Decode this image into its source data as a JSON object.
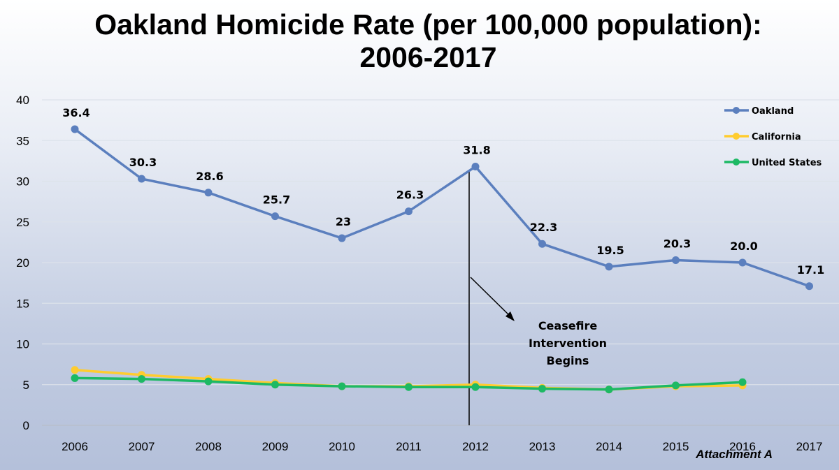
{
  "chart_data": {
    "type": "line",
    "title_lines": [
      "Oakland Homicide Rate (per 100,000 population):",
      "2006-2017"
    ],
    "categories": [
      "2006",
      "2007",
      "2008",
      "2009",
      "2010",
      "2011",
      "2012",
      "2013",
      "2014",
      "2015",
      "2016",
      "2017"
    ],
    "ylim": [
      0,
      40
    ],
    "yticks": [
      0,
      5,
      10,
      15,
      20,
      25,
      30,
      35,
      40
    ],
    "grid": true,
    "legend_position": "top-right",
    "series": [
      {
        "name": "Oakland",
        "color": "#5b7fbe",
        "values": [
          36.4,
          30.3,
          28.6,
          25.7,
          23.0,
          26.3,
          31.8,
          22.3,
          19.5,
          20.3,
          20.0,
          17.1
        ],
        "labels": [
          "36.4",
          "30.3",
          "28.6",
          "25.7",
          "23",
          "26.3",
          "31.8",
          "22.3",
          "19.5",
          "20.3",
          "20.0",
          "17.1"
        ]
      },
      {
        "name": "California",
        "color": "#ffcc2f",
        "values": [
          6.8,
          6.2,
          5.7,
          5.2,
          4.8,
          4.8,
          5.0,
          4.6,
          4.4,
          4.8,
          4.9,
          null
        ]
      },
      {
        "name": "United States",
        "color": "#1db964",
        "values": [
          5.8,
          5.7,
          5.4,
          5.0,
          4.8,
          4.7,
          4.7,
          4.5,
          4.4,
          4.9,
          5.3,
          null
        ]
      }
    ],
    "annotation": {
      "lines": [
        "Ceasefire",
        "Intervention",
        "Begins"
      ],
      "marker_category": "2012"
    },
    "footnote": "Attachment A"
  }
}
